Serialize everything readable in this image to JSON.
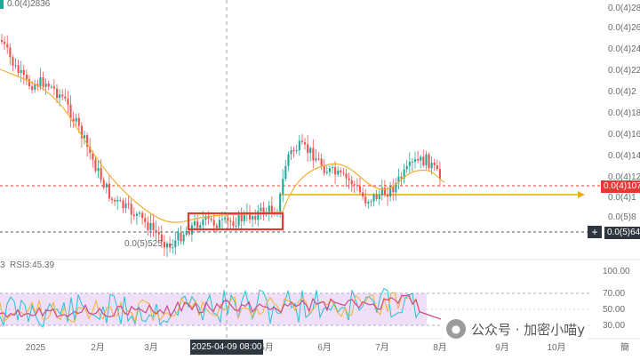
{
  "chart_data": [
    {
      "type": "candlestick",
      "title": "",
      "x_tick_labels": [
        "2025",
        "2月",
        "3月",
        "4月",
        "5月",
        "6月",
        "7月",
        "8月",
        "9月",
        "10月",
        "簡"
      ],
      "y_tick_labels": [
        "0.0(4)28",
        "0.0(4)26",
        "0.0(4)24",
        "0.0(4)22",
        "0.0(4)2",
        "0.0(4)18",
        "0.0(4)16",
        "0.0(4)14",
        "0.0(4)12",
        "0.0(4)1",
        "0.0(5)8"
      ],
      "top_left_label": "0.0(4)2836",
      "current_price_label": "0.0(4)107",
      "support_price_label": "0.0(5)64",
      "low_annotation": "0.0(5)525 →",
      "crosshair_date_label": "2025-04-09 08:00",
      "colors": {
        "up": "#26a69a",
        "down": "#ef5350",
        "ma": "#f2b233",
        "box": "#e53935",
        "current": "#e53935",
        "support": "#4a5566"
      }
    },
    {
      "type": "line",
      "title": "RSI",
      "legend_prefix": "3",
      "legend_value": "RSI3:45.39",
      "y_tick_labels": [
        "100.00",
        "70.00",
        "50.00",
        "30.00"
      ],
      "band": [
        30,
        70
      ]
    }
  ],
  "watermark": {
    "text": "公众号 · 加密小喵y",
    "icon": "wechat-icon"
  }
}
